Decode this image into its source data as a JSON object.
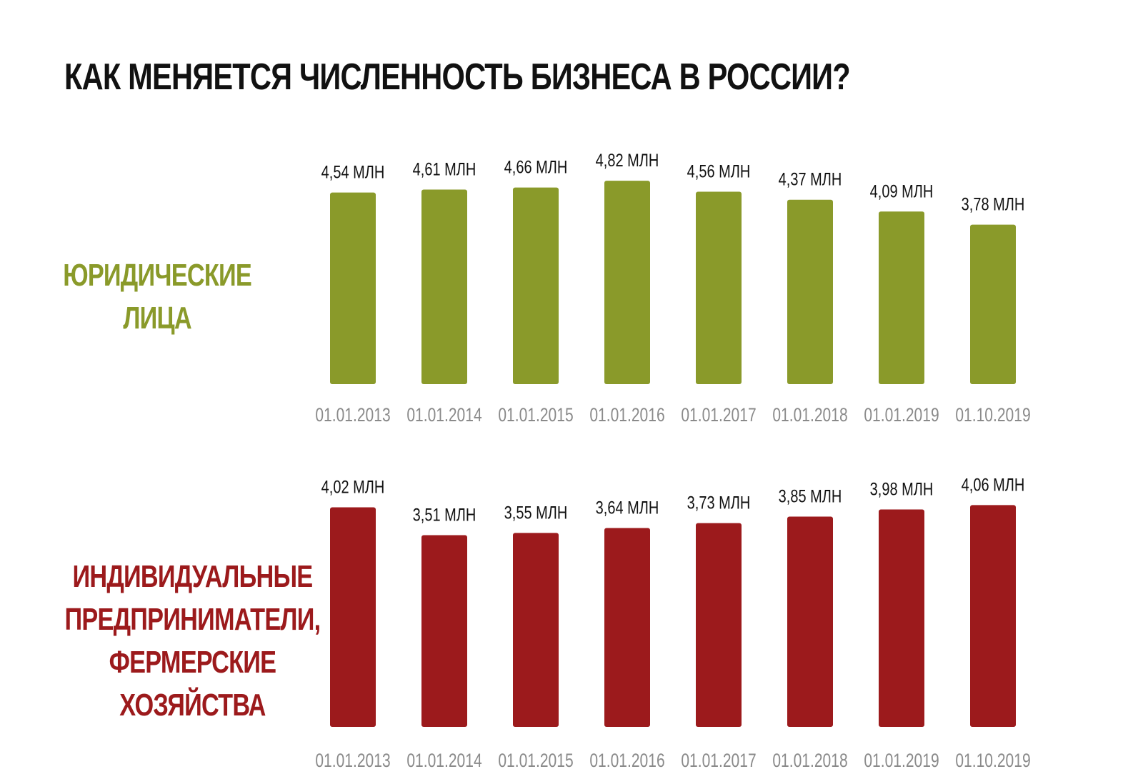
{
  "title": "КАК МЕНЯЕТСЯ ЧИСЛЕННОСТЬ БИЗНЕСА В РОССИИ?",
  "colors": {
    "legal": "#8a9a2a",
    "ip": "#9c1a1c",
    "value_text": "#111111",
    "tick_text": "#8a8a8a"
  },
  "chart_data": [
    {
      "type": "bar",
      "panel_label_lines": [
        "ЮРИДИЧЕСКИЕ",
        "ЛИЦА"
      ],
      "categories": [
        "01.01.2013",
        "01.01.2014",
        "01.01.2015",
        "01.01.2016",
        "01.01.2017",
        "01.01.2018",
        "01.01.2019",
        "01.10.2019"
      ],
      "values": [
        4.54,
        4.61,
        4.66,
        4.82,
        4.56,
        4.37,
        4.09,
        3.78
      ],
      "value_labels": [
        "4,54 МЛН",
        "4,61 МЛН",
        "4,66 МЛН",
        "4,82 МЛН",
        "4,56 МЛН",
        "4,37 МЛН",
        "4,09 МЛН",
        "3,78 МЛН"
      ],
      "unit": "МЛН",
      "ylim": [
        0,
        5
      ],
      "grid": false
    },
    {
      "type": "bar",
      "panel_label_lines": [
        "ИНДИВИДУАЛЬНЫЕ",
        "ПРЕДПРИНИМАТЕЛИ,",
        "ФЕРМЕРСКИЕ",
        "ХОЗЯЙСТВА"
      ],
      "categories": [
        "01.01.2013",
        "01.01.2014",
        "01.01.2015",
        "01.01.2016",
        "01.01.2017",
        "01.01.2018",
        "01.01.2019",
        "01.10.2019"
      ],
      "values": [
        4.02,
        3.51,
        3.55,
        3.64,
        3.73,
        3.85,
        3.98,
        4.06
      ],
      "value_labels": [
        "4,02 МЛН",
        "3,51 МЛН",
        "3,55 МЛН",
        "3,64 МЛН",
        "3,73 МЛН",
        "3,85 МЛН",
        "3,98 МЛН",
        "4,06 МЛН"
      ],
      "unit": "МЛН",
      "ylim": [
        0,
        5
      ],
      "grid": false
    }
  ]
}
